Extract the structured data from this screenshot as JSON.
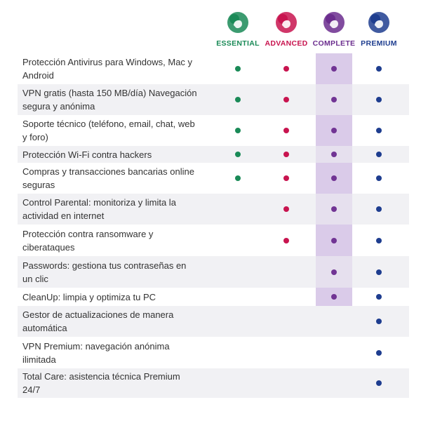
{
  "plans": [
    {
      "name": "ESSENTIAL",
      "color": "#1a8a57",
      "icon": "essential-logo-icon"
    },
    {
      "name": "ADVANCED",
      "color": "#c8144f",
      "icon": "advanced-logo-icon"
    },
    {
      "name": "COMPLETE",
      "color": "#6b2d8e",
      "icon": "complete-logo-icon"
    },
    {
      "name": "PREMIUM",
      "color": "#1e3d8f",
      "icon": "premium-logo-icon"
    }
  ],
  "features": [
    {
      "label": "Protección Antivirus para Windows, Mac y Android",
      "availability": [
        true,
        true,
        true,
        true
      ]
    },
    {
      "label": "VPN gratis (hasta 150 MB/día) Navegación segura y anónima",
      "availability": [
        true,
        true,
        true,
        true
      ]
    },
    {
      "label": "Soporte técnico (teléfono, email, chat, web y foro)",
      "availability": [
        true,
        true,
        true,
        true
      ]
    },
    {
      "label": "Protección Wi-Fi contra hackers",
      "availability": [
        true,
        true,
        true,
        true
      ]
    },
    {
      "label": "Compras y transacciones bancarias online seguras",
      "availability": [
        true,
        true,
        true,
        true
      ]
    },
    {
      "label": "Control Parental: monitoriza y limita la actividad en internet",
      "availability": [
        false,
        true,
        true,
        true
      ]
    },
    {
      "label": "Protección contra ransomware y ciberataques",
      "availability": [
        false,
        true,
        true,
        true
      ]
    },
    {
      "label": "Passwords: gestiona tus contraseñas en un clic",
      "availability": [
        false,
        false,
        true,
        true
      ]
    },
    {
      "label": "CleanUp: limpia y optimiza tu PC",
      "availability": [
        false,
        false,
        true,
        true
      ]
    },
    {
      "label": "Gestor de actualizaciones de manera automática",
      "availability": [
        false,
        false,
        false,
        true
      ]
    },
    {
      "label": "VPN Premium: navegación anónima ilimitada",
      "availability": [
        false,
        false,
        false,
        true
      ]
    },
    {
      "label": "Total Care: asistencia técnica Premium 24/7",
      "availability": [
        false,
        false,
        false,
        true
      ]
    }
  ],
  "highlighted_plan": "COMPLETE"
}
